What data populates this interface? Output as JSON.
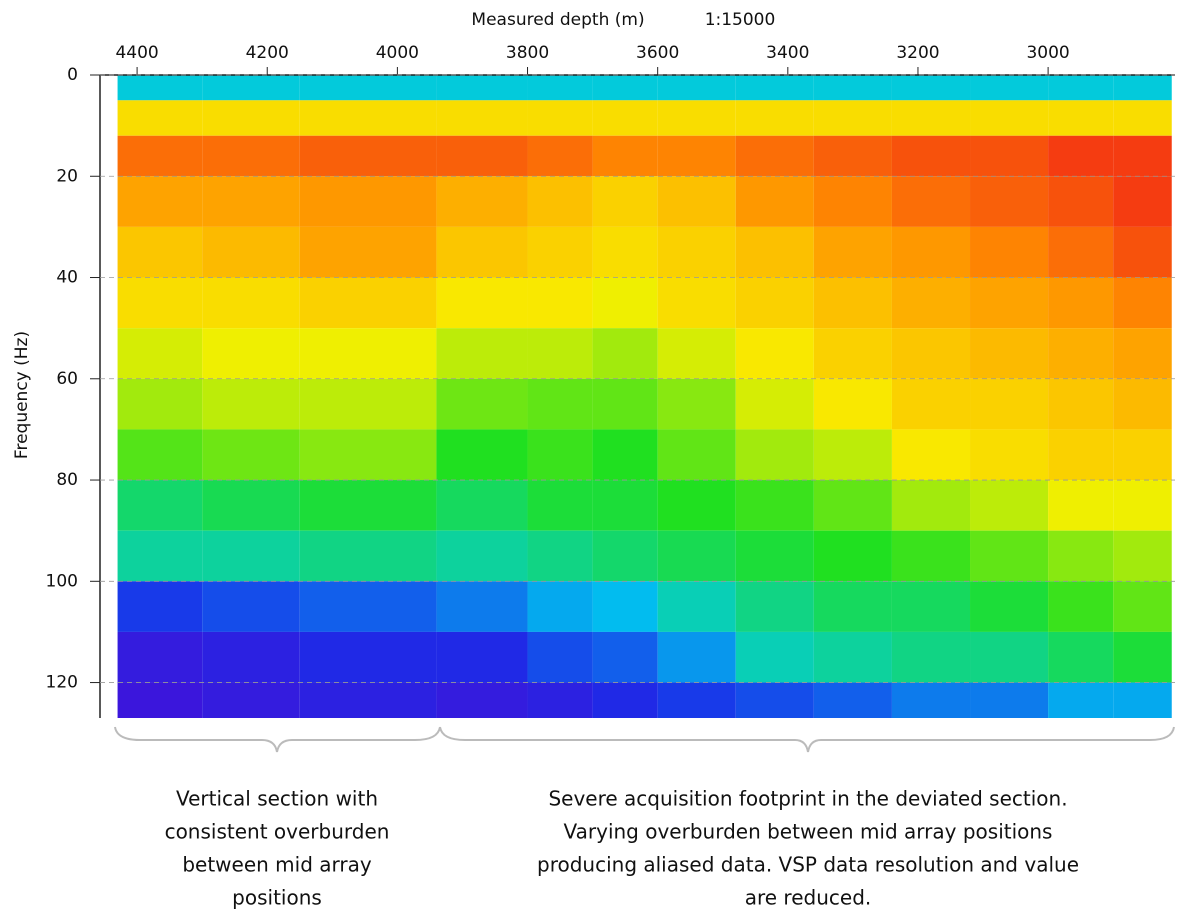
{
  "chart_data": {
    "type": "heatmap",
    "x_label": "Measured depth (m)",
    "scale_label": "1:15000",
    "y_label": "Frequency (Hz)",
    "xlim": [
      4457,
      2805
    ],
    "xticks": [
      4400,
      4200,
      4000,
      3800,
      3600,
      3400,
      3200,
      3000
    ],
    "ylim": [
      0,
      127
    ],
    "yticks": [
      0,
      20,
      40,
      60,
      80,
      100,
      120
    ],
    "y_inverted": true,
    "grid": "y",
    "x_edges": [
      4430,
      4300,
      4150,
      3940,
      3800,
      3700,
      3600,
      3480,
      3360,
      3240,
      3120,
      3000,
      2900,
      2810
    ],
    "y_edges": [
      0,
      5,
      12,
      20,
      30,
      40,
      50,
      60,
      70,
      80,
      90,
      100,
      110,
      120,
      127
    ],
    "colorscale": [
      "#5a00d0",
      "#1a2ee8",
      "#00c8f0",
      "#20e020",
      "#f8f000",
      "#ff9000",
      "#f01818"
    ],
    "z": [
      [
        0.35,
        0.35,
        0.35,
        0.35,
        0.35,
        0.35,
        0.35,
        0.35,
        0.35,
        0.35,
        0.35,
        0.35,
        0.35
      ],
      [
        0.7,
        0.7,
        0.7,
        0.7,
        0.7,
        0.7,
        0.7,
        0.7,
        0.7,
        0.7,
        0.7,
        0.7,
        0.7
      ],
      [
        0.88,
        0.88,
        0.9,
        0.9,
        0.88,
        0.85,
        0.85,
        0.88,
        0.9,
        0.92,
        0.92,
        0.95,
        0.95
      ],
      [
        0.8,
        0.8,
        0.82,
        0.78,
        0.75,
        0.72,
        0.75,
        0.82,
        0.85,
        0.88,
        0.9,
        0.92,
        0.95
      ],
      [
        0.74,
        0.76,
        0.8,
        0.74,
        0.72,
        0.7,
        0.72,
        0.75,
        0.8,
        0.82,
        0.85,
        0.88,
        0.92
      ],
      [
        0.7,
        0.7,
        0.72,
        0.68,
        0.68,
        0.66,
        0.7,
        0.72,
        0.75,
        0.78,
        0.8,
        0.82,
        0.85
      ],
      [
        0.64,
        0.66,
        0.66,
        0.62,
        0.62,
        0.6,
        0.64,
        0.68,
        0.72,
        0.74,
        0.76,
        0.78,
        0.8
      ],
      [
        0.6,
        0.62,
        0.62,
        0.56,
        0.55,
        0.55,
        0.58,
        0.64,
        0.68,
        0.72,
        0.72,
        0.74,
        0.76
      ],
      [
        0.54,
        0.56,
        0.58,
        0.5,
        0.52,
        0.5,
        0.55,
        0.6,
        0.62,
        0.68,
        0.7,
        0.72,
        0.72
      ],
      [
        0.44,
        0.46,
        0.48,
        0.45,
        0.48,
        0.48,
        0.5,
        0.52,
        0.55,
        0.6,
        0.62,
        0.66,
        0.66
      ],
      [
        0.4,
        0.4,
        0.42,
        0.4,
        0.42,
        0.44,
        0.46,
        0.48,
        0.5,
        0.52,
        0.55,
        0.58,
        0.6
      ],
      [
        0.18,
        0.2,
        0.22,
        0.25,
        0.3,
        0.32,
        0.38,
        0.42,
        0.45,
        0.45,
        0.48,
        0.52,
        0.55
      ],
      [
        0.1,
        0.12,
        0.15,
        0.15,
        0.2,
        0.22,
        0.28,
        0.38,
        0.4,
        0.42,
        0.42,
        0.45,
        0.48
      ],
      [
        0.08,
        0.1,
        0.12,
        0.1,
        0.12,
        0.15,
        0.18,
        0.2,
        0.22,
        0.25,
        0.25,
        0.3,
        0.3
      ]
    ],
    "annotations": [
      {
        "lines": [
          "Vertical section with",
          "consistent overburden",
          "between mid array",
          "positions"
        ]
      },
      {
        "lines": [
          "Severe acquisition footprint in the deviated section.",
          "Varying overburden between mid array positions",
          "producing aliased data. VSP data resolution and value",
          "are reduced."
        ]
      }
    ]
  }
}
